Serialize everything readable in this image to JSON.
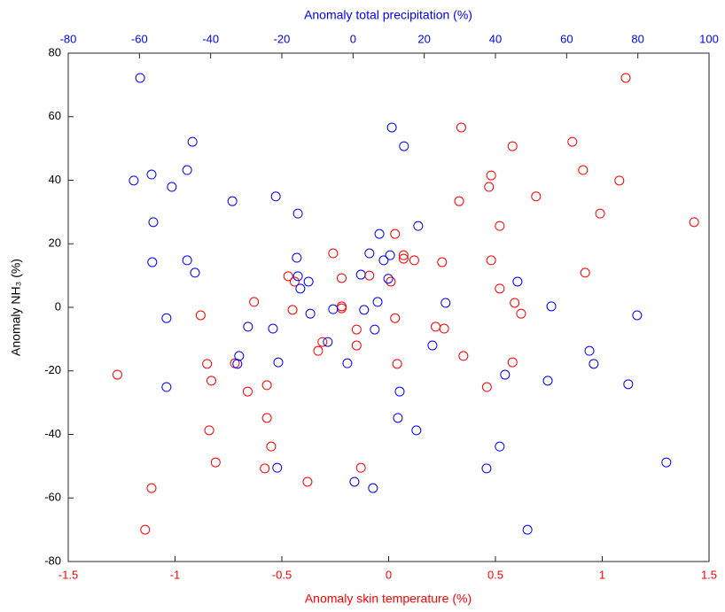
{
  "chart_data": {
    "type": "scatter",
    "xlabel": "Anomaly skin temperature (%)",
    "x2label": "Anomaly total precipitation (%)",
    "ylabel": "Anomaly NH₃ (%)",
    "xlim": [
      -1.5,
      1.5
    ],
    "xticks": [
      -1.5,
      -1,
      -0.5,
      0,
      0.5,
      1,
      1.5
    ],
    "x2lim": [
      -80,
      100
    ],
    "x2ticks": [
      -80,
      -60,
      -40,
      -20,
      0,
      20,
      40,
      60,
      80,
      100
    ],
    "ylim": [
      -80,
      80
    ],
    "yticks": [
      -80,
      -60,
      -40,
      -20,
      0,
      20,
      40,
      60,
      80
    ],
    "xlabel_color": "#ff0000",
    "x2label_color": "#0000ff",
    "series": [
      {
        "color": "#ff0000",
        "x": [
          1.11,
          0.34,
          0.58,
          0.86,
          0.48,
          0.47,
          0.91,
          1.08,
          0.69,
          0.33,
          0.99,
          1.43,
          0.52,
          0.03,
          -0.26,
          0.07,
          0.07,
          0.12,
          0.25,
          0.48,
          0.92,
          -0.47,
          -0.44,
          -0.22,
          -0.09,
          0.01,
          0.52,
          -0.63,
          -0.22,
          -0.22,
          0.59,
          -0.45,
          -0.88,
          0.62,
          0.03,
          0.22,
          0.26,
          -0.15,
          -0.31,
          -0.33,
          -0.15,
          -0.85,
          -0.72,
          0.04,
          0.58,
          0.35,
          -1.27,
          -0.83,
          -0.66,
          -0.57,
          0.46,
          -0.57,
          -0.84,
          -0.55,
          -0.81,
          -0.58,
          -0.13,
          -0.38,
          -1.11,
          -1.14
        ],
        "y": [
          72.2,
          56.6,
          50.7,
          52.1,
          41.5,
          37.9,
          43.2,
          39.9,
          34.9,
          33.4,
          29.5,
          26.8,
          25.6,
          23.1,
          17.0,
          16.4,
          15.3,
          14.8,
          14.2,
          14.8,
          10.9,
          9.8,
          8.1,
          9.2,
          10.0,
          8.1,
          5.9,
          1.7,
          0.3,
          -0.3,
          1.4,
          -0.8,
          -2.5,
          -2.0,
          -3.4,
          -6.1,
          -6.7,
          -7.0,
          -10.9,
          -13.7,
          -12.0,
          -17.8,
          -17.6,
          -17.8,
          -17.3,
          -15.3,
          -21.2,
          -23.1,
          -26.5,
          -24.5,
          -25.1,
          -34.8,
          -38.7,
          -43.8,
          -48.8,
          -50.7,
          -50.5,
          -54.9,
          -56.9,
          -70.0
        ]
      },
      {
        "color": "#0000ff",
        "axis": "x2",
        "x": [
          -59.8,
          10.9,
          14.3,
          -45.1,
          -56.6,
          -61.6,
          -46.6,
          -50.9,
          -21.7,
          -33.9,
          -15.5,
          -56.1,
          18.3,
          7.4,
          -15.8,
          -56.4,
          -46.6,
          -44.4,
          10.4,
          8.6,
          4.6,
          2.2,
          -15.5,
          -12.5,
          9.9,
          46.2,
          -14.8,
          6.9,
          26,
          55.7,
          -5.6,
          3.1,
          -12,
          -52.4,
          79.8,
          -29.5,
          -22.5,
          6.1,
          -7.1,
          -32,
          -32.5,
          -21,
          -1.6,
          22.3,
          66.4,
          67.6,
          42.7,
          54.7,
          -52.4,
          77.3,
          13.1,
          12.6,
          17.8,
          41.2,
          88,
          37.5,
          -21.3,
          0.4,
          5.6,
          49
        ],
        "y": [
          72.2,
          56.6,
          50.7,
          52.1,
          41.8,
          39.9,
          43.2,
          37.9,
          34.9,
          33.4,
          29.5,
          26.8,
          25.6,
          23.1,
          15.6,
          14.2,
          14.8,
          10.9,
          16.4,
          14.8,
          17.0,
          10.3,
          9.8,
          8.1,
          9.0,
          8.1,
          5.9,
          1.7,
          1.4,
          0.3,
          -0.6,
          -0.8,
          -2.0,
          -3.4,
          -2.5,
          -6.1,
          -6.7,
          -7.0,
          -10.9,
          -15.3,
          -17.8,
          -17.3,
          -17.6,
          -12.0,
          -13.7,
          -17.8,
          -21.2,
          -23.1,
          -25.1,
          -24.2,
          -26.5,
          -34.8,
          -38.7,
          -43.8,
          -48.8,
          -50.7,
          -50.5,
          -54.9,
          -56.9,
          -70.0
        ]
      }
    ]
  }
}
